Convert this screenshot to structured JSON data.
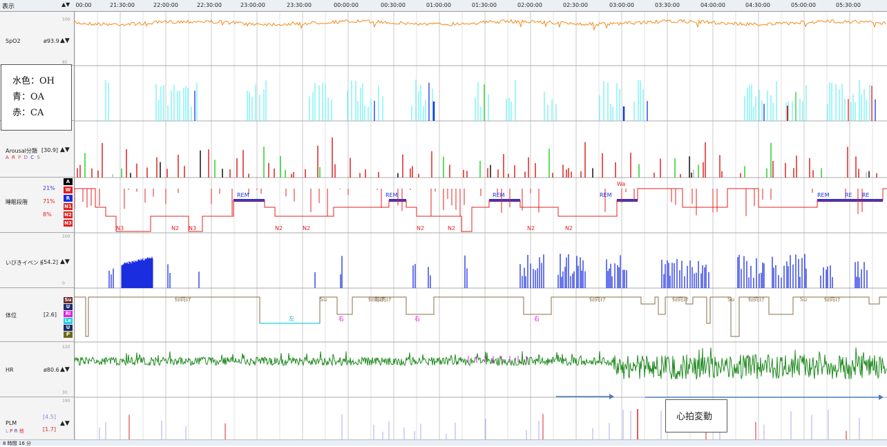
{
  "header": {
    "display_label": "表示",
    "arrows": "▲▼"
  },
  "time_axis": {
    "ticks": [
      "00:00",
      "21:30:00",
      "22:00:00",
      "22:30:00",
      "23:00:00",
      "23:30:00",
      "00:00:00",
      "00:30:00",
      "01:00:00",
      "01:30:00",
      "02:00:00",
      "02:30:00",
      "03:00:00",
      "03:30:00",
      "04:00:00",
      "04:30:00",
      "05:00:00",
      "05:30:00"
    ]
  },
  "rows": {
    "spo2": {
      "name": "SpO2",
      "value": "ø93.9",
      "scale_top": "100",
      "scale_bottom": "85"
    },
    "resp": {
      "name": "",
      "value": ""
    },
    "arousal": {
      "name": "Arousal分類",
      "value": "[30.9]",
      "legend_letters": [
        "A",
        "R",
        "P",
        "D",
        "C",
        "S"
      ]
    },
    "sleep": {
      "name": "睡眠段階",
      "percent_rem": "21%",
      "percent_mid": "71%",
      "percent_low": "8%",
      "badges": [
        "A",
        "W",
        "R",
        "N1",
        "N2",
        "N3"
      ],
      "labels": [
        "N3",
        "N2",
        "N3",
        "REM",
        "N2",
        "N2",
        "REM",
        "N2",
        "N2",
        "REM",
        "N2",
        "N2",
        "REM",
        "Wa",
        "REM",
        "RE",
        "RE"
      ]
    },
    "snore": {
      "name": "いびきイベント",
      "value": "[54.2]",
      "scale_top": "100",
      "scale_bottom": "0"
    },
    "position": {
      "name": "体位",
      "value": "[2.6]",
      "badges": [
        "Su",
        "U",
        "Ri",
        "Le",
        "U",
        "P"
      ],
      "labels": [
        "仰向け",
        "仰向け",
        "左",
        "右",
        "右",
        "右",
        "仰向け",
        "仰向け",
        "Su",
        "仰向け",
        "仰向け",
        "仰向け",
        "Su",
        "Su"
      ]
    },
    "hr": {
      "name": "HR",
      "value": "ø80.6",
      "scale_top": "120",
      "scale_bottom": "30"
    },
    "plm": {
      "name": "PLM",
      "value_top": "[4.5]",
      "value_bottom": "[1.7]",
      "legend_letters": [
        "L",
        "P",
        "R",
        "他"
      ],
      "scale_top": "190"
    }
  },
  "legend_box": {
    "line1": "水色：OH",
    "line2": "青：OA",
    "line3": "赤：CA"
  },
  "annotation": {
    "text": "心拍変動"
  },
  "status": {
    "text": "8 時間 16 分"
  },
  "colors": {
    "spo2": "#f28a1a",
    "oh": "#6ff0f4",
    "oa": "#1a2ee0",
    "ca": "#e02020",
    "hr": "#1f8a1f",
    "sleep": "#e02020",
    "position": "#8a6e48",
    "arrow": "#4a7ac0"
  }
}
